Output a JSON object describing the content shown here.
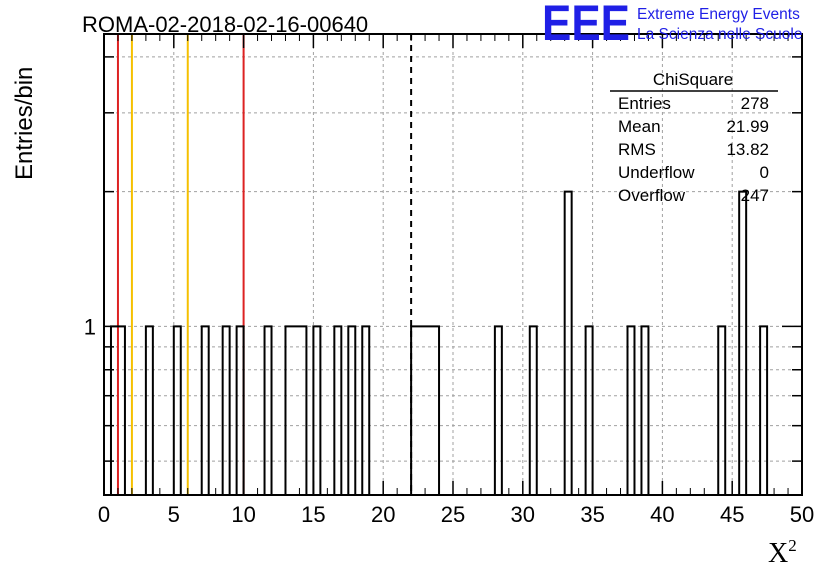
{
  "chart_data": {
    "type": "histogram",
    "title": "ROMA-02-2018-02-16-00640",
    "xlabel": "X",
    "xlabel_superscript": "2",
    "ylabel": "Entries/bin",
    "xlim": [
      0,
      50
    ],
    "ylim": [
      0.42,
      4.5
    ],
    "y_scale": "log",
    "grid": true,
    "bin_width": 0.5,
    "x_ticks": [
      "0",
      "5",
      "10",
      "15",
      "20",
      "25",
      "30",
      "35",
      "40",
      "45",
      "50"
    ],
    "y_tick_labels": [
      "1"
    ],
    "bins": [
      {
        "x0": 0.5,
        "x1": 1.0,
        "count": 1
      },
      {
        "x0": 1.0,
        "x1": 1.5,
        "count": 1
      },
      {
        "x0": 3.0,
        "x1": 3.5,
        "count": 1
      },
      {
        "x0": 5.0,
        "x1": 5.5,
        "count": 1
      },
      {
        "x0": 7.0,
        "x1": 7.5,
        "count": 1
      },
      {
        "x0": 8.5,
        "x1": 9.0,
        "count": 1
      },
      {
        "x0": 9.5,
        "x1": 10.0,
        "count": 1
      },
      {
        "x0": 11.5,
        "x1": 12.0,
        "count": 1
      },
      {
        "x0": 13.0,
        "x1": 13.5,
        "count": 1
      },
      {
        "x0": 13.5,
        "x1": 14.0,
        "count": 1
      },
      {
        "x0": 14.0,
        "x1": 14.5,
        "count": 1
      },
      {
        "x0": 15.0,
        "x1": 15.5,
        "count": 1
      },
      {
        "x0": 16.5,
        "x1": 17.0,
        "count": 1
      },
      {
        "x0": 17.5,
        "x1": 18.0,
        "count": 1
      },
      {
        "x0": 18.5,
        "x1": 19.0,
        "count": 1
      },
      {
        "x0": 22.0,
        "x1": 22.5,
        "count": 1
      },
      {
        "x0": 22.5,
        "x1": 23.0,
        "count": 1
      },
      {
        "x0": 23.0,
        "x1": 23.5,
        "count": 1
      },
      {
        "x0": 23.5,
        "x1": 24.0,
        "count": 1
      },
      {
        "x0": 28.0,
        "x1": 28.5,
        "count": 1
      },
      {
        "x0": 30.5,
        "x1": 31.0,
        "count": 1
      },
      {
        "x0": 33.0,
        "x1": 33.5,
        "count": 2
      },
      {
        "x0": 34.5,
        "x1": 35.0,
        "count": 1
      },
      {
        "x0": 37.5,
        "x1": 38.0,
        "count": 1
      },
      {
        "x0": 38.5,
        "x1": 39.0,
        "count": 1
      },
      {
        "x0": 44.0,
        "x1": 44.5,
        "count": 1
      },
      {
        "x0": 45.5,
        "x1": 46.0,
        "count": 2
      },
      {
        "x0": 47.0,
        "x1": 47.5,
        "count": 1
      }
    ],
    "vertical_lines": [
      {
        "x": 1,
        "color": "#dd2222",
        "style": "solid"
      },
      {
        "x": 2,
        "color": "#f5c000",
        "style": "solid"
      },
      {
        "x": 6,
        "color": "#f5c000",
        "style": "solid"
      },
      {
        "x": 10,
        "color": "#dd2222",
        "style": "solid"
      },
      {
        "x": 22,
        "color": "#000000",
        "style": "dashed"
      }
    ],
    "stats": {
      "name": "ChiSquare",
      "rows": [
        {
          "label": "Entries",
          "value": "278"
        },
        {
          "label": "Mean",
          "value": "21.99"
        },
        {
          "label": "RMS",
          "value": "13.82"
        },
        {
          "label": "Underflow",
          "value": "0"
        },
        {
          "label": "Overflow",
          "value": "247"
        }
      ]
    }
  },
  "logo": {
    "mark": "EEE",
    "line1": "Extreme Energy Events",
    "line2": "La Scienza nelle Scuole"
  }
}
